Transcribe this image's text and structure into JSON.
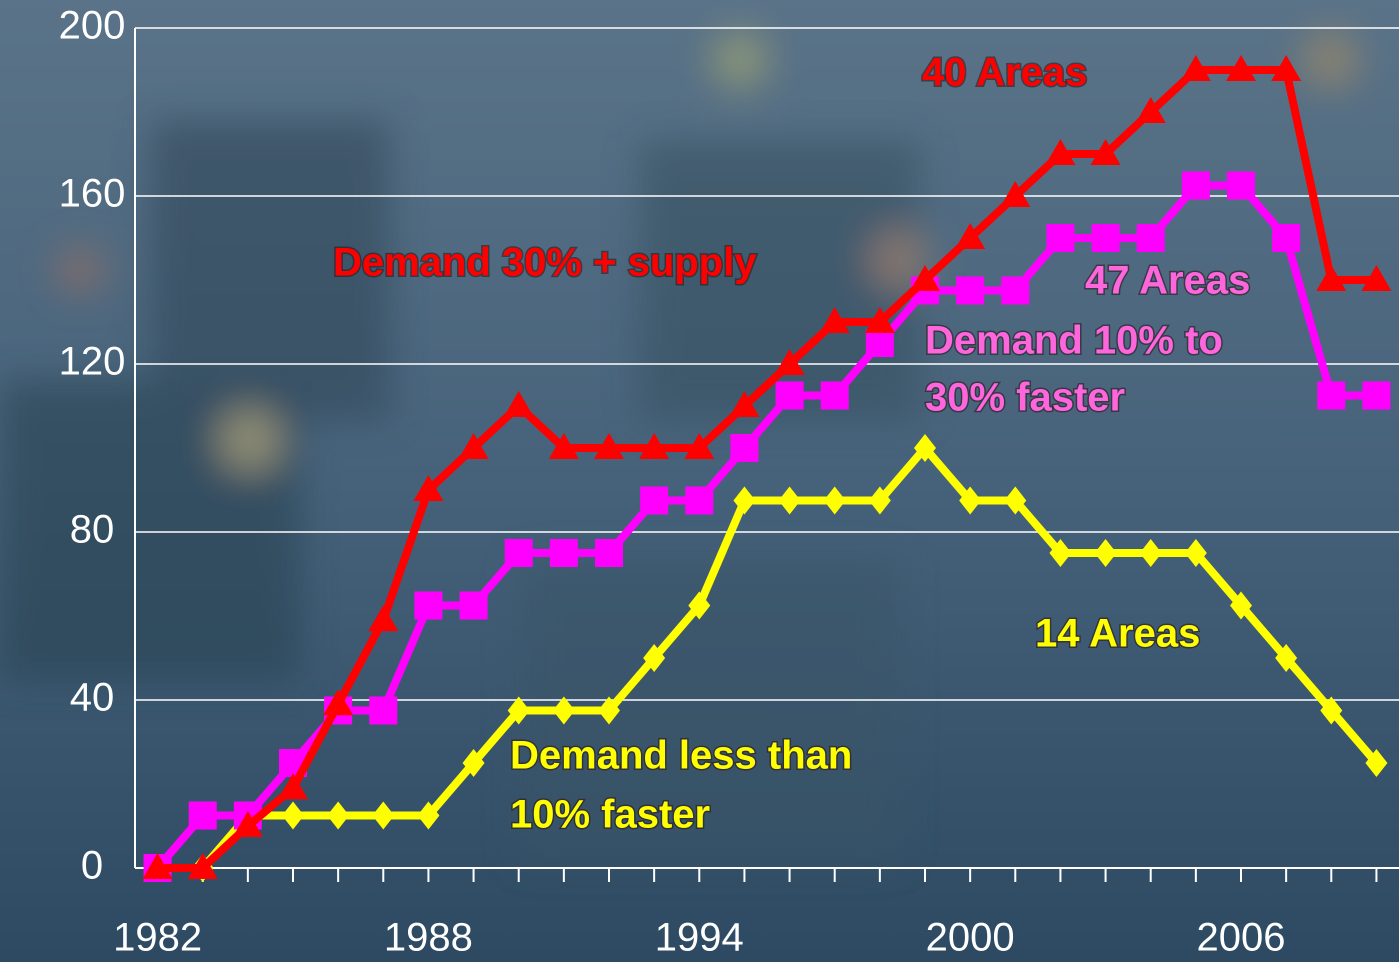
{
  "chart_data": {
    "type": "line",
    "x": [
      1982,
      1983,
      1984,
      1985,
      1986,
      1987,
      1988,
      1989,
      1990,
      1991,
      1992,
      1993,
      1994,
      1995,
      1996,
      1997,
      1998,
      1999,
      2000,
      2001,
      2002,
      2003,
      2004,
      2005,
      2006,
      2007,
      2008,
      2009
    ],
    "series": [
      {
        "name": "40 Areas",
        "color": "#ff0000",
        "marker": "triangle",
        "values": [
          0,
          0,
          10,
          19,
          39,
          59,
          90,
          100,
          110,
          100,
          100,
          100,
          100,
          110,
          120,
          130,
          130,
          140,
          150,
          160,
          170,
          170,
          180,
          190,
          190,
          190,
          140,
          140
        ]
      },
      {
        "name": "47 Areas",
        "color": "#ff00ff",
        "marker": "square",
        "values": [
          0,
          12.5,
          12.5,
          25,
          37.5,
          37.5,
          62.5,
          62.5,
          75,
          75,
          75,
          87.5,
          87.5,
          100,
          112.5,
          112.5,
          125,
          137.5,
          137.5,
          137.5,
          150,
          150,
          150,
          162.5,
          162.5,
          150,
          112.5,
          112.5
        ]
      },
      {
        "name": "14 Areas",
        "color": "#ffff00",
        "marker": "diamond",
        "values": [
          0,
          0,
          12.5,
          12.5,
          12.5,
          12.5,
          12.5,
          25,
          37.5,
          37.5,
          37.5,
          50,
          62.5,
          87.5,
          87.5,
          87.5,
          87.5,
          100,
          87.5,
          87.5,
          75,
          75,
          75,
          75,
          62.5,
          50,
          37.5,
          25
        ]
      }
    ],
    "annotations": [
      {
        "text": "Demand  30% + supply",
        "color": "#ff0000"
      },
      {
        "text": "Demand 10% to",
        "color": "#ff66dd"
      },
      {
        "text": "30% faster",
        "color": "#ff66dd"
      },
      {
        "text": "Demand less than",
        "color": "#ffff00"
      },
      {
        "text": "10% faster",
        "color": "#ffff00"
      }
    ],
    "xlim": [
      1981.5,
      2009.5
    ],
    "xticks": [
      1982,
      1988,
      1994,
      2000,
      2006
    ],
    "ylim": [
      0,
      200
    ],
    "yticks": [
      0,
      40,
      80,
      120,
      160,
      200
    ],
    "grid": true
  }
}
